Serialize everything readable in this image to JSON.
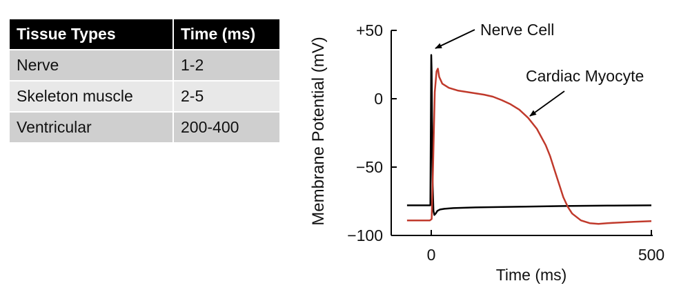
{
  "table": {
    "headers": [
      "Tissue Types",
      "Time (ms)"
    ],
    "rows": [
      [
        "Nerve",
        "1-2"
      ],
      [
        "Skeleton muscle",
        "2-5"
      ],
      [
        "Ventricular",
        "200-400"
      ]
    ]
  },
  "chart_data": {
    "type": "line",
    "title": "",
    "xlabel": "Time (ms)",
    "ylabel": "Membrane Potential (mV)",
    "xlim": [
      -55,
      500
    ],
    "ylim": [
      -100,
      50
    ],
    "x_ticks": [
      0,
      500
    ],
    "x_tick_labels": [
      "0",
      "500"
    ],
    "y_ticks": [
      50,
      0,
      -50,
      -100
    ],
    "y_tick_labels": [
      "+50",
      "0",
      "−50",
      "−100"
    ],
    "grid": false,
    "legend": "none",
    "series": [
      {
        "name": "Nerve Cell",
        "color": "#000000",
        "x": [
          -55,
          -2,
          0,
          1,
          3,
          5,
          7,
          10,
          14,
          20,
          30,
          50,
          100,
          200,
          300,
          400,
          500
        ],
        "y": [
          -78,
          -78,
          32,
          20,
          -60,
          -82,
          -85,
          -84,
          -82,
          -81,
          -80.5,
          -80,
          -79.5,
          -79,
          -78.5,
          -78.2,
          -78
        ]
      },
      {
        "name": "Cardiac Myocyte",
        "color": "#c0392b",
        "x": [
          -55,
          -3,
          1,
          4,
          8,
          12,
          15,
          18,
          25,
          40,
          60,
          80,
          100,
          120,
          140,
          160,
          180,
          200,
          220,
          240,
          260,
          270,
          280,
          290,
          300,
          310,
          320,
          340,
          360,
          380,
          400,
          430,
          460,
          500
        ],
        "y": [
          -89,
          -89,
          -88,
          -50,
          5,
          20,
          22,
          16,
          11,
          8,
          6,
          5,
          4,
          3,
          1.5,
          -1,
          -4,
          -8,
          -14,
          -22,
          -34,
          -42,
          -52,
          -62,
          -72,
          -79,
          -84,
          -89,
          -91,
          -91.5,
          -91,
          -90.5,
          -90,
          -89.5
        ]
      }
    ],
    "annotations": [
      {
        "text": "Nerve Cell",
        "target_series": "Nerve Cell"
      },
      {
        "text": "Cardiac Myocyte",
        "target_series": "Cardiac Myocyte"
      }
    ]
  }
}
